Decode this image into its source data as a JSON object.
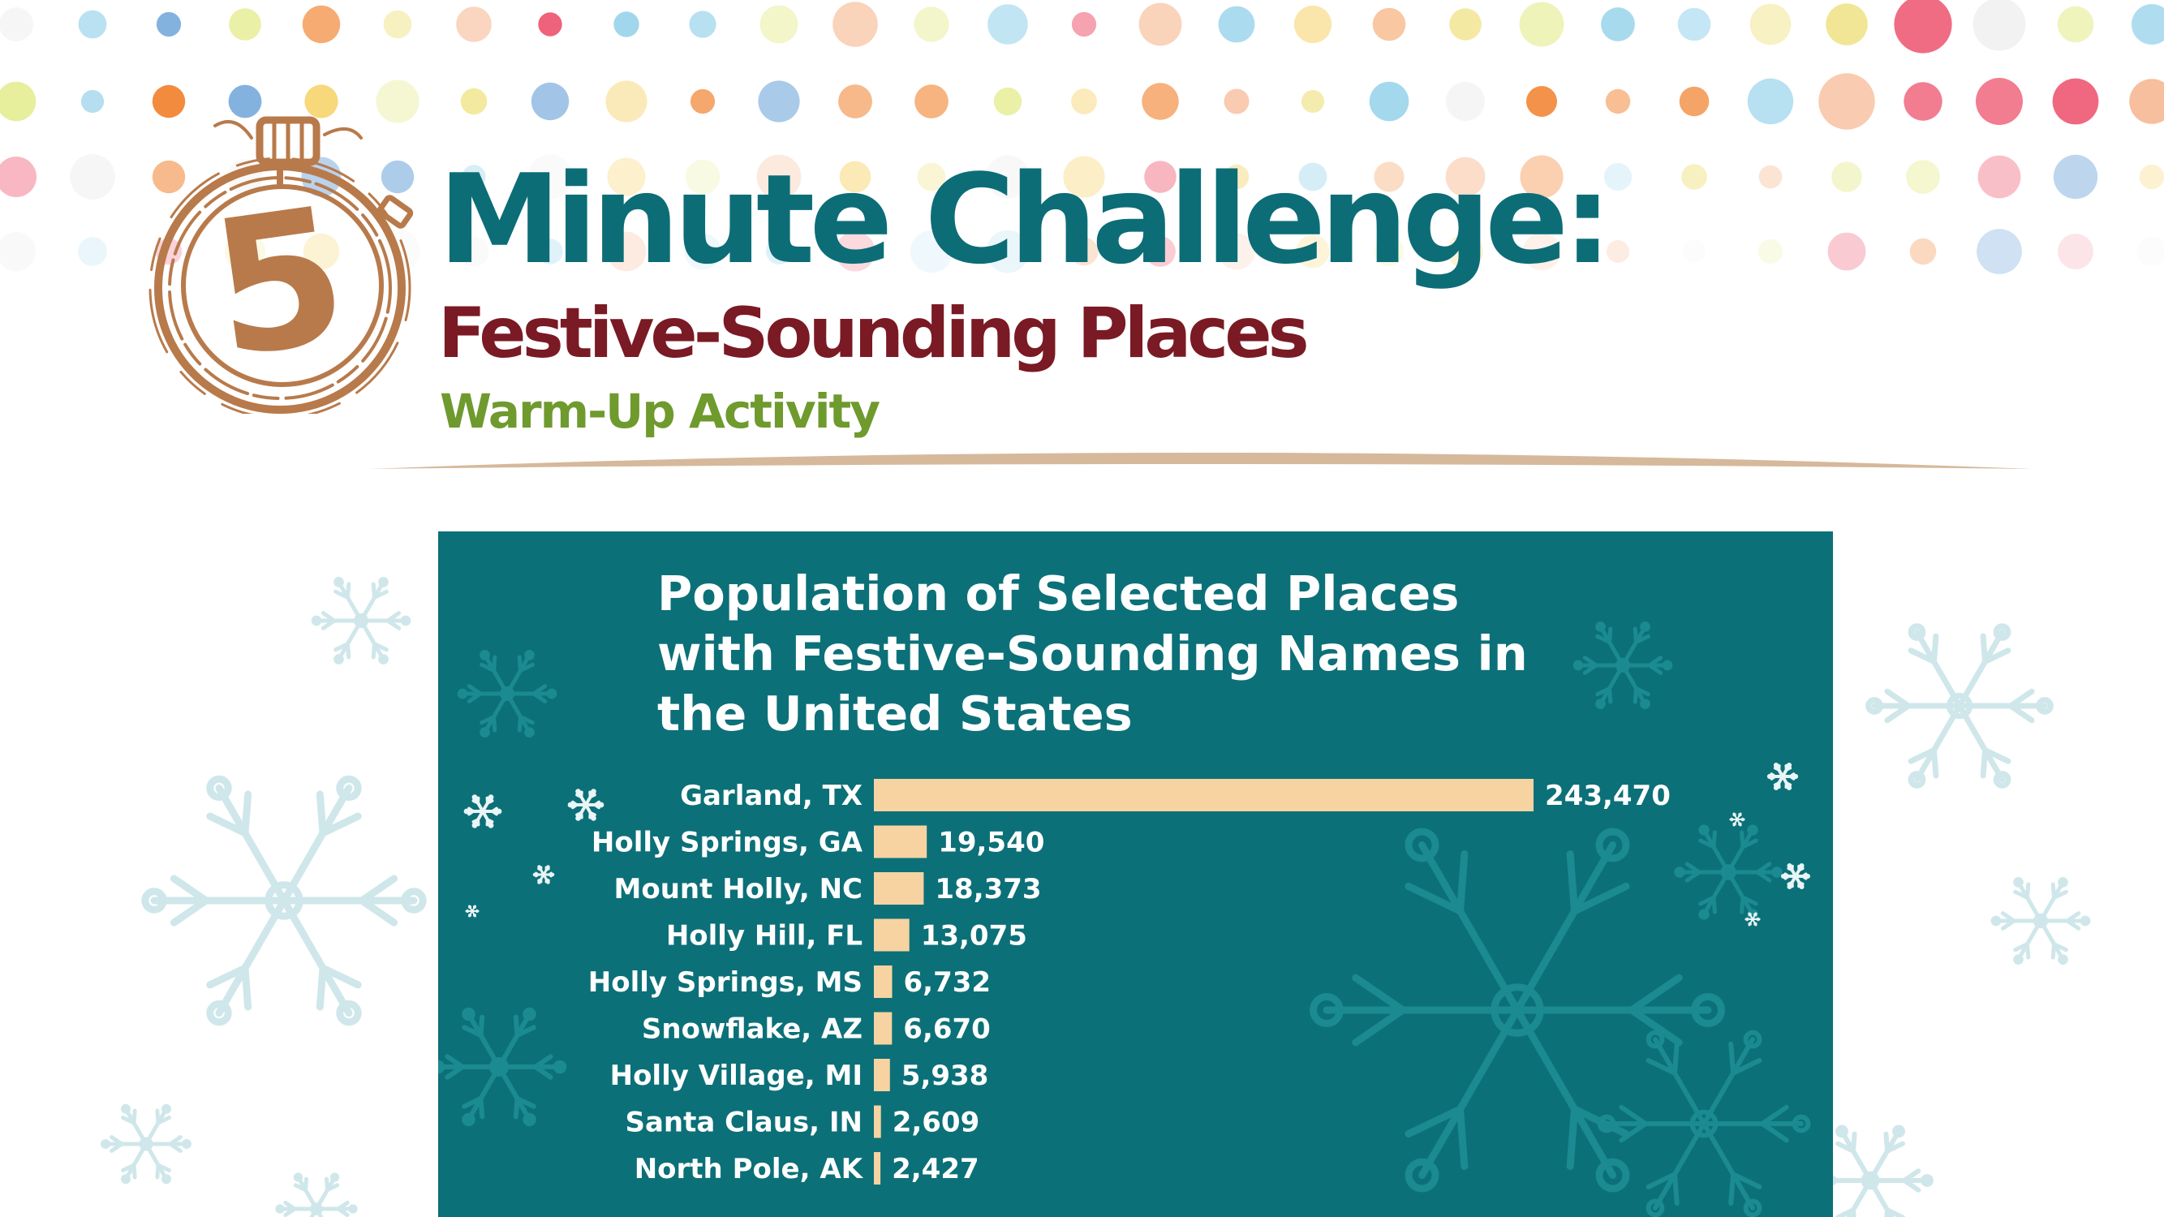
{
  "header": {
    "title": "Minute Challenge:",
    "subtitle": "Festive-Sounding Places",
    "activity": "Warm-Up Activity",
    "timer_number": "5"
  },
  "colors": {
    "teal": "#0c6d77",
    "maroon": "#7a1a24",
    "green": "#6f9a2e",
    "timer_brown": "#b87a4b",
    "bar": "#f6d3a1",
    "panel": "#0c7078"
  },
  "chart_data": {
    "type": "bar",
    "orientation": "horizontal",
    "title": "Population of Selected Places with Festive-Sounding Names in the United States",
    "categories": [
      "Garland, TX",
      "Holly Springs, GA",
      "Mount Holly, NC",
      "Holly Hill, FL",
      "Holly Springs, MS",
      "Snowflake, AZ",
      "Holly Village, MI",
      "Santa Claus, IN",
      "North Pole, AK"
    ],
    "values": [
      243470,
      19540,
      18373,
      13075,
      6732,
      6670,
      5938,
      2609,
      2427
    ],
    "value_labels": [
      "243,470",
      "19,540",
      "18,373",
      "13,075",
      "6,732",
      "6,670",
      "5,938",
      "2,609",
      "2,427"
    ],
    "xlim": [
      0,
      243470
    ],
    "grid": false,
    "legend": "none"
  }
}
